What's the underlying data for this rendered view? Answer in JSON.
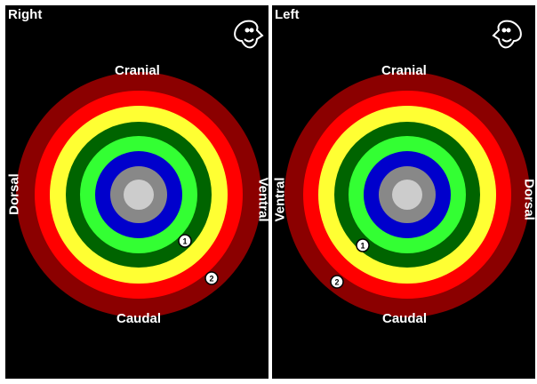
{
  "colors": {
    "background": "#000000",
    "ring_1": "#8b0000",
    "ring_2": "#ff0000",
    "ring_3": "#ffff33",
    "ring_4": "#006400",
    "ring_5": "#33ff33",
    "ring_6": "#0000cc",
    "ring_7": "#888888",
    "center": "#cccccc"
  },
  "panels": [
    {
      "side_label": "Right",
      "cranial": "Cranial",
      "caudal": "Caudal",
      "left_edge_label": "Dorsal",
      "right_edge_label": "Ventral",
      "face_icon": "face-facing-right-icon",
      "markers": [
        {
          "label": "1"
        },
        {
          "label": "2"
        }
      ]
    },
    {
      "side_label": "Left",
      "cranial": "Cranial",
      "caudal": "Caudal",
      "left_edge_label": "Ventral",
      "right_edge_label": "Dorsal",
      "face_icon": "face-facing-left-icon",
      "markers": [
        {
          "label": "1"
        },
        {
          "label": "2"
        }
      ]
    }
  ]
}
